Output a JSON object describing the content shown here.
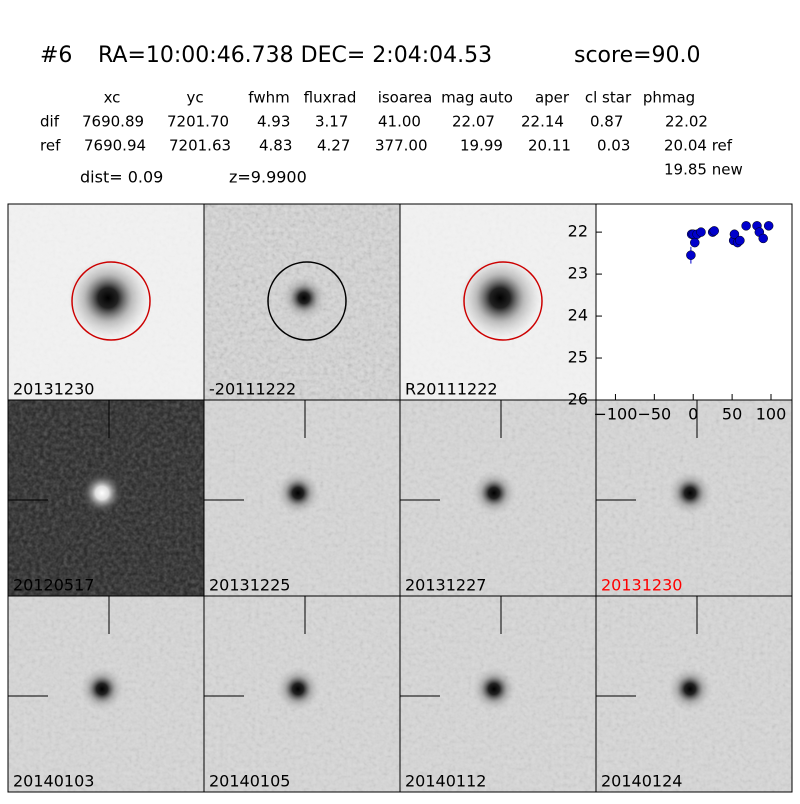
{
  "header": {
    "id": "#6",
    "coords": "RA=10:00:46.738 DEC= 2:04:04.53",
    "score": "score=90.0"
  },
  "table": {
    "columns": [
      "xc",
      "yc",
      "fwhm",
      "fluxrad",
      "isoarea",
      "mag auto",
      "aper",
      "cl star",
      "phmag"
    ],
    "rows": [
      [
        "dif",
        "7690.89",
        "7201.70",
        "4.93",
        "3.17",
        "41.00",
        "22.07",
        "22.14",
        "0.87",
        "22.02"
      ],
      [
        "ref",
        "7690.94",
        "7201.63",
        "4.83",
        "4.27",
        "377.00",
        "19.99",
        "20.11",
        "0.03",
        "20.04 ref"
      ]
    ],
    "extra": "19.85 new"
  },
  "dist": "dist=  0.09",
  "z": "z=9.9900",
  "panels": [
    {
      "label": "20131230"
    },
    {
      "label": "-20111222"
    },
    {
      "label": "R20111222"
    },
    {
      "label": "20120517"
    },
    {
      "label": "20131225"
    },
    {
      "label": "20131227"
    },
    {
      "label": "20131230",
      "label_color": "#ff0000"
    },
    {
      "label": "20140103"
    },
    {
      "label": "20140105"
    },
    {
      "label": "20140112"
    },
    {
      "label": "20140124"
    }
  ],
  "chart_data": {
    "type": "scatter",
    "color": "#0000cc",
    "x": [
      -3,
      -2,
      0,
      2,
      5,
      10,
      25,
      27,
      52,
      53,
      57,
      60,
      68,
      82,
      85,
      90,
      97
    ],
    "values": [
      22.55,
      22.05,
      22.05,
      22.25,
      22.05,
      22.0,
      22.0,
      21.97,
      22.2,
      22.05,
      22.25,
      22.2,
      21.85,
      21.85,
      22.0,
      22.15,
      21.85
    ],
    "errors": [
      0.2,
      0.05,
      0.05,
      0.05,
      0.05,
      0.04,
      0.05,
      0.05,
      0.06,
      0.05,
      0.06,
      0.06,
      0.04,
      0.04,
      0.05,
      0.05,
      0.04
    ],
    "xlim": [
      -125,
      127
    ],
    "ylim": [
      26,
      21.33
    ],
    "xticks": [
      {
        "value": -100,
        "label": "−100"
      },
      {
        "value": -50,
        "label": "−50"
      },
      0,
      50,
      100
    ],
    "yticks": [
      22,
      23,
      24,
      25,
      26
    ]
  }
}
